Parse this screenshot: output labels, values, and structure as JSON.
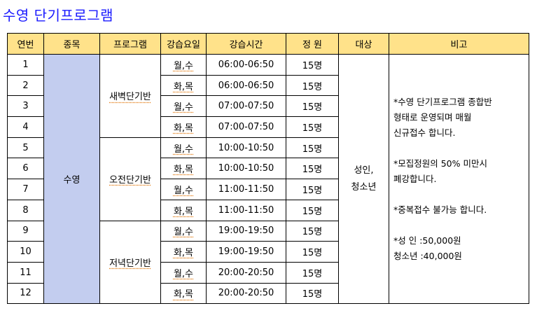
{
  "title": "수영 단기프로그램",
  "headers": [
    "연번",
    "종목",
    "프로그램",
    "강습요일",
    "강습시간",
    "정 원",
    "대상",
    "비고"
  ],
  "sport": "수영",
  "programs": [
    "새벽단기반",
    "오전단기반",
    "저녁단기반"
  ],
  "target": "성인,\n청소년",
  "rows": [
    {
      "no": "1",
      "days": "월,수",
      "time": "06:00-06:50",
      "cap": "15명"
    },
    {
      "no": "2",
      "days": "화,목",
      "time": "06:00-06:50",
      "cap": "15명"
    },
    {
      "no": "3",
      "days": "월,수",
      "time": "07:00-07:50",
      "cap": "15명"
    },
    {
      "no": "4",
      "days": "화,목",
      "time": "07:00-07:50",
      "cap": "15명"
    },
    {
      "no": "5",
      "days": "월,수",
      "time": "10:00-10:50",
      "cap": "15명"
    },
    {
      "no": "6",
      "days": "화,목",
      "time": "10:00-10:50",
      "cap": "15명"
    },
    {
      "no": "7",
      "days": "월,수",
      "time": "11:00-11:50",
      "cap": "15명"
    },
    {
      "no": "8",
      "days": "화,목",
      "time": "11:00-11:50",
      "cap": "15명"
    },
    {
      "no": "9",
      "days": "월,수",
      "time": "19:00-19:50",
      "cap": "15명"
    },
    {
      "no": "10",
      "days": "화,목",
      "time": "19:00-19:50",
      "cap": "15명"
    },
    {
      "no": "11",
      "days": "월,수",
      "time": "20:00-20:50",
      "cap": "15명"
    },
    {
      "no": "12",
      "days": "화,목",
      "time": "20:00-20:50",
      "cap": "15명"
    }
  ],
  "notes": "*수영 단기프로그램 종합반\n형태로 운영되며 매월\n신규접수 합니다.\n\n*모집정원의 50% 미만시\n  폐강합니다.\n\n*중복접수 불가능 합니다.\n\n*성    인 :50,000원\n  청소년 :40,000원"
}
